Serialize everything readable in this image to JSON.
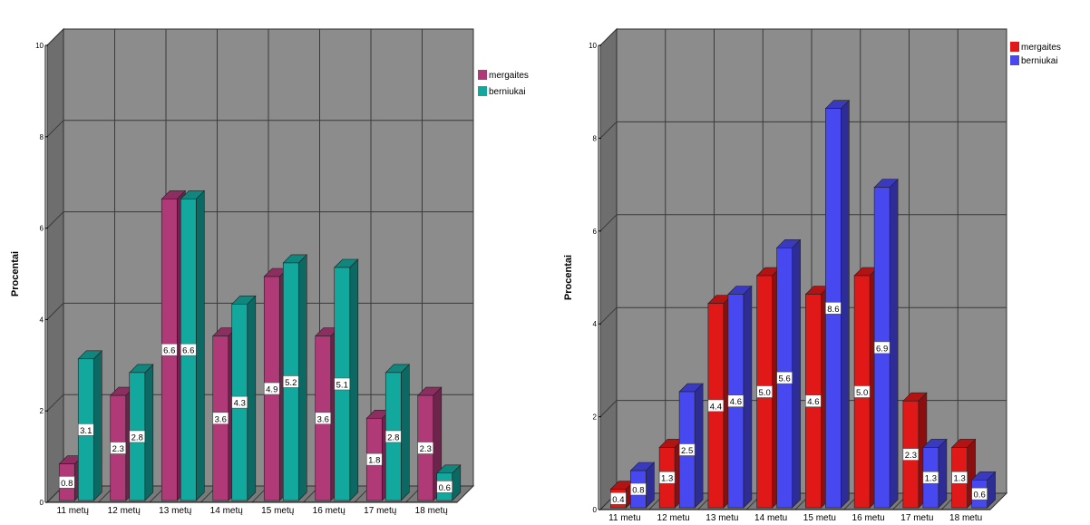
{
  "chart_data": [
    {
      "type": "bar",
      "categories": [
        "11 metų",
        "12 metų",
        "13 metų",
        "14 metų",
        "15 metų",
        "16 metų",
        "17 metų",
        "18 metų"
      ],
      "series": [
        {
          "name": "mergaites",
          "color": "#b03a78",
          "values": [
            0.8,
            2.3,
            6.6,
            3.6,
            4.9,
            3.6,
            1.8,
            2.3
          ],
          "labels": [
            "0.8",
            "2.3",
            "6.6",
            "3.6",
            "4.9",
            "3.6",
            "1.8",
            "2.3"
          ]
        },
        {
          "name": "berniukai",
          "color": "#13a89e",
          "values": [
            3.1,
            2.8,
            6.6,
            4.3,
            5.2,
            5.1,
            2.8,
            0.6
          ],
          "labels": [
            "3.1",
            "2.8",
            "6.6",
            "4.3",
            "5.2",
            "5.1",
            "2.8",
            "0.6"
          ]
        }
      ],
      "ylabel": "Procentai",
      "yticks": [
        "0",
        "2",
        "4",
        "6",
        "8",
        "10"
      ],
      "ylim": [
        0,
        10
      ],
      "grid": true,
      "legend": "top-right"
    },
    {
      "type": "bar",
      "categories": [
        "11 metų",
        "12 metų",
        "13 metų",
        "14 metų",
        "15 metų",
        "16 metų",
        "17 metų",
        "18 metų"
      ],
      "series": [
        {
          "name": "mergaites",
          "color": "#e01818",
          "values": [
            0.4,
            1.3,
            4.4,
            5.0,
            4.6,
            5.0,
            2.3,
            1.3
          ],
          "labels": [
            "0.4",
            "1.3",
            "4.4",
            "5.0",
            "4.6",
            "5.0",
            "2.3",
            "1.3"
          ]
        },
        {
          "name": "berniukai",
          "color": "#4848f0",
          "values": [
            0.8,
            2.5,
            4.6,
            5.6,
            8.6,
            6.9,
            1.3,
            0.6
          ],
          "labels": [
            "0.8",
            "2.5",
            "4.6",
            "5.6",
            "8.6",
            "6.9",
            "1.3",
            "0.6"
          ]
        }
      ],
      "ylabel": "Procentai",
      "yticks": [
        "0",
        "2",
        "4",
        "6",
        "8",
        "10"
      ],
      "ylim": [
        0,
        10
      ],
      "grid": true,
      "legend": "top-right"
    }
  ]
}
